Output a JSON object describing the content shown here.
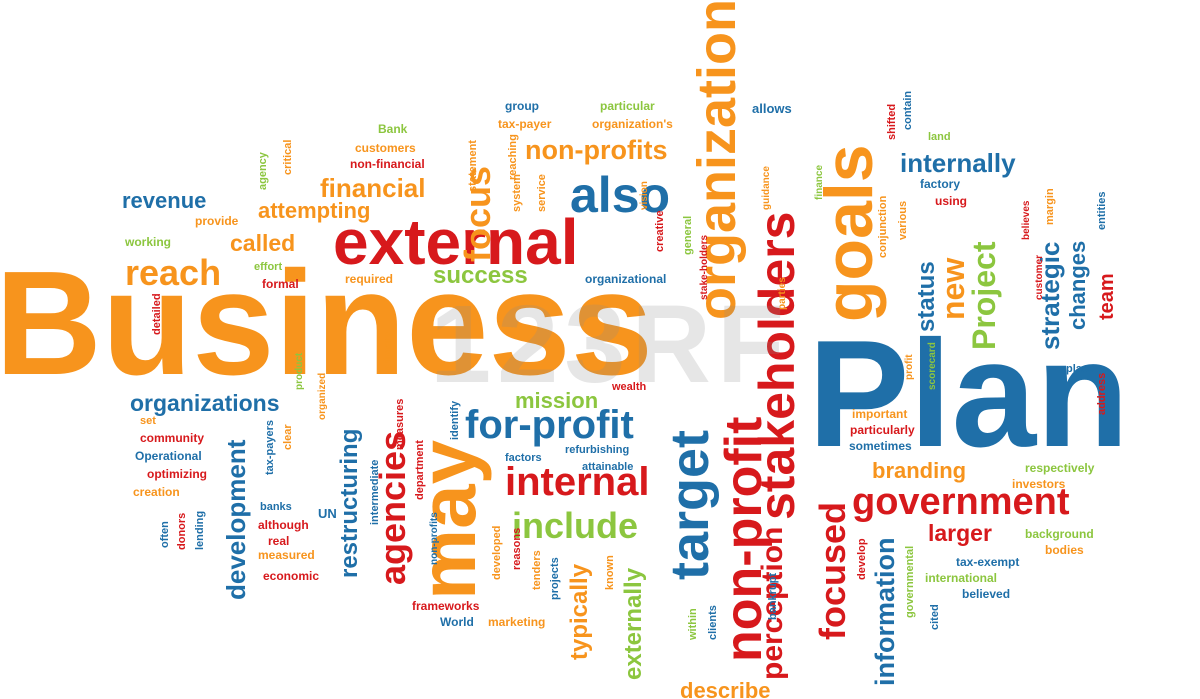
{
  "palette": {
    "orange": "#f7941d",
    "red": "#d7191c",
    "blue": "#1f6fa8",
    "green": "#8cc63f",
    "gray": "#555555"
  },
  "watermark": "123RF",
  "words": [
    {
      "text": "Business",
      "color": "orange"
    },
    {
      "text": "Plan",
      "color": "blue"
    },
    {
      "text": "external",
      "color": "red"
    },
    {
      "text": "also",
      "color": "blue"
    },
    {
      "text": "goals",
      "color": "orange"
    },
    {
      "text": "organization",
      "color": "orange"
    },
    {
      "text": "stakeholders",
      "color": "red"
    },
    {
      "text": "target",
      "color": "blue"
    },
    {
      "text": "non-profit",
      "color": "red"
    },
    {
      "text": "may",
      "color": "orange"
    },
    {
      "text": "agencies",
      "color": "red"
    },
    {
      "text": "internal",
      "color": "red"
    },
    {
      "text": "include",
      "color": "green"
    },
    {
      "text": "for-profit",
      "color": "blue"
    },
    {
      "text": "government",
      "color": "red"
    },
    {
      "text": "focused",
      "color": "red"
    },
    {
      "text": "perception",
      "color": "red"
    },
    {
      "text": "information",
      "color": "blue"
    },
    {
      "text": "Project",
      "color": "green"
    },
    {
      "text": "new",
      "color": "orange"
    },
    {
      "text": "status",
      "color": "blue"
    },
    {
      "text": "strategic",
      "color": "blue"
    },
    {
      "text": "changes",
      "color": "blue"
    },
    {
      "text": "team",
      "color": "red"
    },
    {
      "text": "internally",
      "color": "blue"
    },
    {
      "text": "non-profits",
      "color": "orange"
    },
    {
      "text": "focus",
      "color": "orange"
    },
    {
      "text": "financial",
      "color": "orange"
    },
    {
      "text": "attempting",
      "color": "orange"
    },
    {
      "text": "revenue",
      "color": "blue"
    },
    {
      "text": "called",
      "color": "orange"
    },
    {
      "text": "reach",
      "color": "orange"
    },
    {
      "text": "success",
      "color": "green"
    },
    {
      "text": "organizations",
      "color": "blue"
    },
    {
      "text": "mission",
      "color": "green"
    },
    {
      "text": "development",
      "color": "blue"
    },
    {
      "text": "restructuring",
      "color": "blue"
    },
    {
      "text": "typically",
      "color": "orange"
    },
    {
      "text": "externally",
      "color": "green"
    },
    {
      "text": "describe",
      "color": "orange"
    },
    {
      "text": "branding",
      "color": "orange"
    },
    {
      "text": "larger",
      "color": "red"
    },
    {
      "text": "organizational",
      "color": "blue"
    },
    {
      "text": "group",
      "color": "blue"
    },
    {
      "text": "tax-payer",
      "color": "orange"
    },
    {
      "text": "particular",
      "color": "green"
    },
    {
      "text": "organization's",
      "color": "orange"
    },
    {
      "text": "allows",
      "color": "blue"
    },
    {
      "text": "Bank",
      "color": "green"
    },
    {
      "text": "customers",
      "color": "orange"
    },
    {
      "text": "non-financial",
      "color": "red"
    },
    {
      "text": "provide",
      "color": "orange"
    },
    {
      "text": "working",
      "color": "green"
    },
    {
      "text": "effort",
      "color": "green"
    },
    {
      "text": "formal",
      "color": "red"
    },
    {
      "text": "required",
      "color": "orange"
    },
    {
      "text": "community",
      "color": "red"
    },
    {
      "text": "Operational",
      "color": "blue"
    },
    {
      "text": "optimizing",
      "color": "red"
    },
    {
      "text": "creation",
      "color": "orange"
    },
    {
      "text": "set",
      "color": "orange"
    },
    {
      "text": "factors",
      "color": "blue"
    },
    {
      "text": "refurbishing",
      "color": "blue"
    },
    {
      "text": "attainable",
      "color": "blue"
    },
    {
      "text": "wealth",
      "color": "red"
    },
    {
      "text": "UN",
      "color": "blue"
    },
    {
      "text": "banks",
      "color": "blue"
    },
    {
      "text": "although",
      "color": "red"
    },
    {
      "text": "real",
      "color": "red"
    },
    {
      "text": "measured",
      "color": "orange"
    },
    {
      "text": "economic",
      "color": "red"
    },
    {
      "text": "frameworks",
      "color": "red"
    },
    {
      "text": "World",
      "color": "blue"
    },
    {
      "text": "marketing",
      "color": "orange"
    },
    {
      "text": "important",
      "color": "orange"
    },
    {
      "text": "particularly",
      "color": "red"
    },
    {
      "text": "sometimes",
      "color": "blue"
    },
    {
      "text": "respectively",
      "color": "green"
    },
    {
      "text": "investors",
      "color": "orange"
    },
    {
      "text": "background",
      "color": "green"
    },
    {
      "text": "bodies",
      "color": "orange"
    },
    {
      "text": "tax-exempt",
      "color": "blue"
    },
    {
      "text": "international",
      "color": "green"
    },
    {
      "text": "believed",
      "color": "blue"
    },
    {
      "text": "factory",
      "color": "blue"
    },
    {
      "text": "using",
      "color": "red"
    },
    {
      "text": "land",
      "color": "green"
    },
    {
      "text": "place",
      "color": "blue"
    },
    {
      "text": "address",
      "color": "red"
    },
    {
      "text": "entities",
      "color": "blue"
    },
    {
      "text": "margin",
      "color": "orange"
    },
    {
      "text": "believes",
      "color": "red"
    },
    {
      "text": "customer",
      "color": "red"
    },
    {
      "text": "shifted",
      "color": "red"
    },
    {
      "text": "contain",
      "color": "blue"
    },
    {
      "text": "various",
      "color": "orange"
    },
    {
      "text": "finance",
      "color": "green"
    },
    {
      "text": "guidance",
      "color": "orange"
    },
    {
      "text": "scorecard",
      "color": "green"
    },
    {
      "text": "profit",
      "color": "orange"
    },
    {
      "text": "primary",
      "color": "orange"
    },
    {
      "text": "measures",
      "color": "red"
    },
    {
      "text": "department",
      "color": "red"
    },
    {
      "text": "identify",
      "color": "blue"
    },
    {
      "text": "system",
      "color": "orange"
    },
    {
      "text": "service",
      "color": "orange"
    },
    {
      "text": "creative",
      "color": "red"
    },
    {
      "text": "general",
      "color": "green"
    },
    {
      "text": "statement",
      "color": "orange"
    },
    {
      "text": "reaching",
      "color": "orange"
    },
    {
      "text": "agency",
      "color": "green"
    },
    {
      "text": "critical",
      "color": "orange"
    },
    {
      "text": "detailed",
      "color": "red"
    },
    {
      "text": "often",
      "color": "blue"
    },
    {
      "text": "donors",
      "color": "red"
    },
    {
      "text": "lending",
      "color": "blue"
    },
    {
      "text": "tax-payers",
      "color": "blue"
    },
    {
      "text": "clear",
      "color": "orange"
    },
    {
      "text": "intermediate",
      "color": "blue"
    },
    {
      "text": "non-profits",
      "color": "blue"
    },
    {
      "text": "developed",
      "color": "orange"
    },
    {
      "text": "reasons",
      "color": "red"
    },
    {
      "text": "tenders",
      "color": "orange"
    },
    {
      "text": "projects",
      "color": "blue"
    },
    {
      "text": "known",
      "color": "orange"
    },
    {
      "text": "within",
      "color": "green"
    },
    {
      "text": "clients",
      "color": "blue"
    },
    {
      "text": "bankrupt",
      "color": "blue"
    },
    {
      "text": "develop",
      "color": "red"
    },
    {
      "text": "conjunction",
      "color": "orange"
    },
    {
      "text": "cited",
      "color": "blue"
    },
    {
      "text": "governmental",
      "color": "green"
    },
    {
      "text": "product",
      "color": "green"
    },
    {
      "text": "organized",
      "color": "orange"
    },
    {
      "text": "vision",
      "color": "orange"
    },
    {
      "text": "stake-holders",
      "color": "red"
    },
    {
      "text": "parties",
      "color": "orange"
    }
  ]
}
